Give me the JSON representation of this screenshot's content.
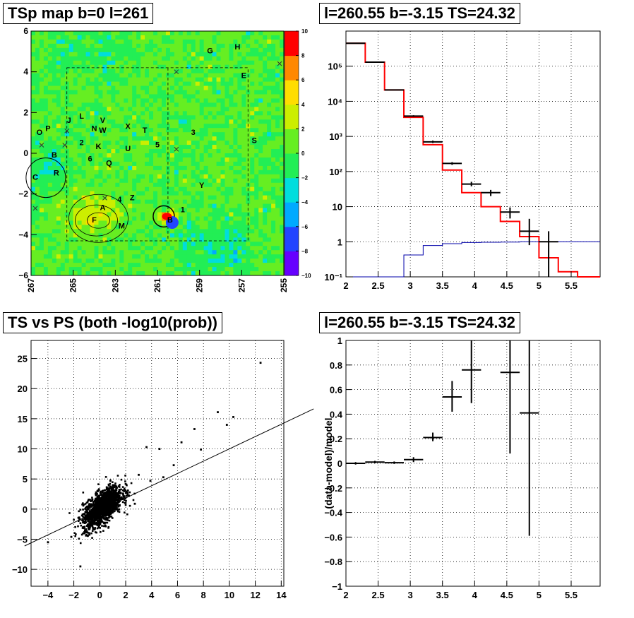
{
  "panels": {
    "tl": {
      "title": "TSp map b=0 l=261",
      "xticks": [
        "267",
        "265",
        "263",
        "261",
        "259",
        "257",
        "255"
      ],
      "yticks": [
        "6",
        "4",
        "2",
        "0",
        "−2",
        "−4",
        "−6"
      ],
      "zticks": [
        "10",
        "8",
        "6",
        "4",
        "2",
        "0",
        "−2",
        "−4",
        "−6",
        "−8",
        "−10"
      ],
      "labels": [
        "G",
        "H",
        "E",
        "L",
        "V",
        "J",
        "N",
        "W",
        "X",
        "T",
        "3",
        "O",
        "P",
        "2",
        "K",
        "5",
        "S",
        "B",
        "6",
        "U",
        "Q",
        "C",
        "R",
        "Y",
        "4",
        "Z",
        "A",
        "F",
        "M",
        "1",
        "B"
      ]
    },
    "tr": {
      "title": "l=260.55 b=-3.15 TS=24.32",
      "xticks": [
        "2",
        "2.5",
        "3",
        "3.5",
        "4",
        "4.5",
        "5",
        "5.5"
      ],
      "yticks": [
        "10⁻¹",
        "1",
        "10",
        "10²",
        "10³",
        "10⁴",
        "10⁵"
      ]
    },
    "bl": {
      "title": "TS vs PS (both -log10(prob))",
      "xticks": [
        "−4",
        "−2",
        "0",
        "2",
        "4",
        "6",
        "8",
        "10",
        "12",
        "14"
      ],
      "yticks": [
        "25",
        "20",
        "15",
        "10",
        "5",
        "0",
        "−5",
        "−10"
      ]
    },
    "br": {
      "title": "l=260.55 b=-3.15 TS=24.32",
      "ylabel": "(data-model)/model",
      "xticks": [
        "2",
        "2.5",
        "3",
        "3.5",
        "4",
        "4.5",
        "5",
        "5.5"
      ],
      "yticks": [
        "1",
        "0.8",
        "0.6",
        "0.4",
        "0.2",
        "0",
        "−0.2",
        "−0.4",
        "−0.6",
        "−0.8",
        "−1"
      ]
    }
  },
  "chart_data": [
    {
      "type": "heatmap",
      "title": "TSp map b=0 l=261",
      "xlim": [
        267,
        255
      ],
      "ylim": [
        -6,
        6
      ],
      "zlim": [
        -10,
        10
      ],
      "colors": [
        "#6600ff",
        "#2244ff",
        "#00aaff",
        "#00dddd",
        "#22ee55",
        "#66ee22",
        "#ccee00",
        "#ffdd00",
        "#ff8800",
        "#ff0000"
      ],
      "note_peak": {
        "l": 260.55,
        "b": -3.15
      }
    },
    {
      "type": "line",
      "title": "l=260.55 b=-3.15 TS=24.32",
      "yscale": "log",
      "xlim": [
        2,
        5.95
      ],
      "ylim": [
        0.1,
        1000000
      ],
      "grid": true,
      "bin_edges": [
        2.0,
        2.3,
        2.6,
        2.9,
        3.2,
        3.5,
        3.8,
        4.1,
        4.4,
        4.7,
        5.0,
        5.3,
        5.6,
        5.95
      ],
      "series": [
        {
          "color": "#ff0000",
          "values": [
            450000,
            130000,
            21000,
            3500,
            580,
            110,
            25,
            10,
            3.8,
            1.4,
            0.35,
            0.14,
            0.1
          ]
        },
        {
          "color": "#0000aa",
          "values": [
            0.0,
            0.0,
            0.0,
            0.42,
            0.78,
            0.88,
            0.95,
            0.97,
            0.98,
            1.0,
            1.0,
            1.0,
            1.0
          ]
        }
      ],
      "points": [
        {
          "x": 2.15,
          "y": 450000,
          "xerr": 0.15,
          "ylo": 450000,
          "yhi": 450000
        },
        {
          "x": 2.45,
          "y": 130000,
          "xerr": 0.15,
          "ylo": 130000,
          "yhi": 130000
        },
        {
          "x": 2.75,
          "y": 21000,
          "xerr": 0.15,
          "ylo": 21000,
          "yhi": 21000
        },
        {
          "x": 3.05,
          "y": 3800,
          "xerr": 0.15,
          "ylo": 3600,
          "yhi": 4000
        },
        {
          "x": 3.35,
          "y": 700,
          "xerr": 0.15,
          "ylo": 650,
          "yhi": 760
        },
        {
          "x": 3.65,
          "y": 170,
          "xerr": 0.15,
          "ylo": 155,
          "yhi": 185
        },
        {
          "x": 3.95,
          "y": 44,
          "xerr": 0.15,
          "ylo": 38,
          "yhi": 51
        },
        {
          "x": 4.25,
          "y": 25,
          "xerr": 0.15,
          "ylo": 20,
          "yhi": 30
        },
        {
          "x": 4.55,
          "y": 7,
          "xerr": 0.15,
          "ylo": 4.6,
          "yhi": 9.5
        },
        {
          "x": 4.85,
          "y": 2,
          "xerr": 0.15,
          "ylo": 0.8,
          "yhi": 4.5
        },
        {
          "x": 5.15,
          "y": 1,
          "xerr": 0.15,
          "ylo": 0.1,
          "yhi": 2
        }
      ]
    },
    {
      "type": "scatter",
      "title": "TS vs PS (both -log10(prob))",
      "xlim": [
        -5.3,
        14.2
      ],
      "ylim": [
        -12.8,
        28
      ],
      "grid": true,
      "fit_line": {
        "slope": 1.02,
        "intercept": -0.2
      },
      "outliers": [
        [
          12.4,
          24.3
        ],
        [
          10.3,
          15.3
        ],
        [
          9.1,
          16.1
        ],
        [
          9.8,
          14.0
        ],
        [
          7.3,
          13.3
        ],
        [
          6.3,
          11.1
        ],
        [
          7.8,
          9.9
        ],
        [
          3.6,
          10.3
        ],
        [
          4.6,
          10.0
        ],
        [
          5.7,
          7.3
        ],
        [
          4.9,
          5.3
        ],
        [
          3.9,
          4.7
        ],
        [
          3.0,
          5.7
        ],
        [
          -4.0,
          -5.5
        ],
        [
          -1.5,
          -9.5
        ],
        [
          -2.2,
          -4.6
        ],
        [
          2.7,
          0.9
        ]
      ],
      "cloud": {
        "x_mean": 0.2,
        "x_sd": 0.75,
        "slope": 1.45,
        "y_sd": 1.3,
        "n": 1600
      }
    },
    {
      "type": "line",
      "title": "l=260.55 b=-3.15 TS=24.32",
      "ylabel": "(data-model)/model",
      "xlim": [
        2,
        5.95
      ],
      "ylim": [
        -1,
        1
      ],
      "grid": true,
      "points": [
        {
          "x": 2.15,
          "y": 0.0,
          "xerr": 0.15,
          "ylo": -0.01,
          "yhi": 0.01
        },
        {
          "x": 2.45,
          "y": 0.01,
          "xerr": 0.15,
          "ylo": 0.0,
          "yhi": 0.02
        },
        {
          "x": 2.75,
          "y": 0.005,
          "xerr": 0.15,
          "ylo": -0.005,
          "yhi": 0.015
        },
        {
          "x": 3.05,
          "y": 0.03,
          "xerr": 0.15,
          "ylo": 0.01,
          "yhi": 0.05
        },
        {
          "x": 3.35,
          "y": 0.21,
          "xerr": 0.15,
          "ylo": 0.18,
          "yhi": 0.25
        },
        {
          "x": 3.65,
          "y": 0.54,
          "xerr": 0.15,
          "ylo": 0.42,
          "yhi": 0.67
        },
        {
          "x": 3.95,
          "y": 0.76,
          "xerr": 0.15,
          "ylo": 0.49,
          "yhi": 1.0
        },
        {
          "x": 4.55,
          "y": 0.74,
          "xerr": 0.15,
          "ylo": 0.08,
          "yhi": 1.0
        },
        {
          "x": 4.85,
          "y": 0.41,
          "xerr": 0.15,
          "ylo": -0.59,
          "yhi": 1.0
        }
      ]
    }
  ]
}
